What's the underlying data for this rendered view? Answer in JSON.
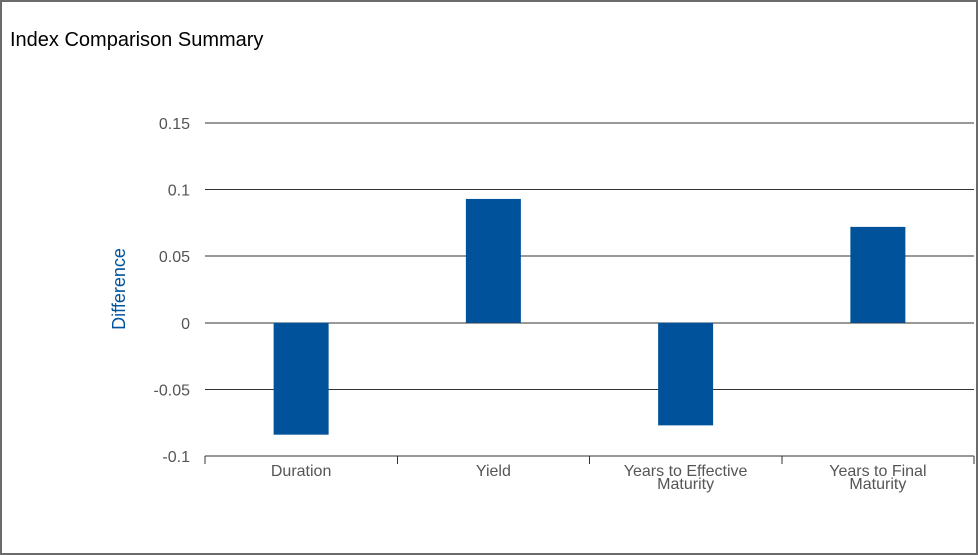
{
  "chart_data": {
    "type": "bar",
    "title": "Index Comparison Summary",
    "ylabel": "Difference",
    "xlabel": "",
    "categories": [
      [
        "Duration"
      ],
      [
        "Yield"
      ],
      [
        "Years to Effective",
        "Maturity"
      ],
      [
        "Years to Final",
        "Maturity"
      ]
    ],
    "values": [
      -0.084,
      0.093,
      -0.077,
      0.072
    ],
    "ylim": [
      -0.1,
      0.15
    ],
    "yticks": [
      0.15,
      0.1,
      0.05,
      0,
      -0.05,
      -0.1
    ],
    "ytick_labels": [
      "0.15",
      "0.1",
      "0.05",
      "0",
      "-0.05",
      "-0.1"
    ],
    "grid": true,
    "legend": "none",
    "colors": {
      "bar": "#00539b",
      "ylabel": "#00539b",
      "tick_label": "#555555",
      "grid": "#333333"
    }
  }
}
